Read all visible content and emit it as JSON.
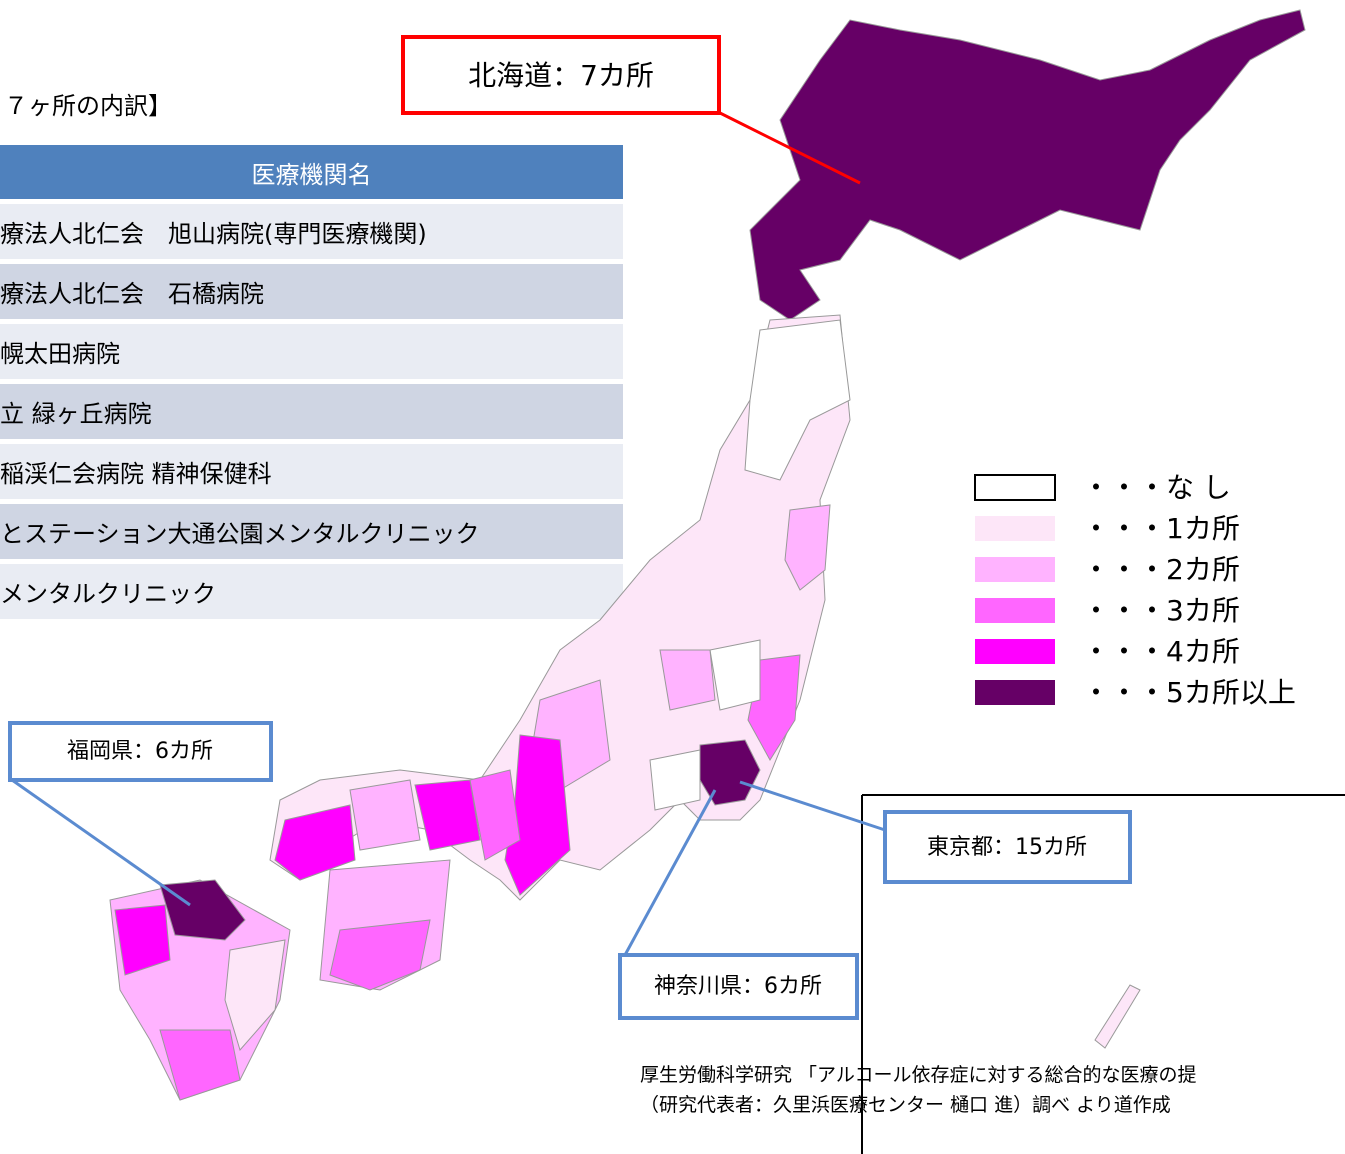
{
  "table_title": "７ヶ所の内訳】",
  "table": {
    "header": "医療機関名",
    "rows": [
      "療法人北仁会　旭山病院(専門医療機関)",
      "療法人北仁会　石橋病院",
      "幌太田病院",
      "立 緑ヶ丘病院",
      "稲渓仁会病院 精神保健科",
      "とステーション大通公園メンタルクリニック",
      "メンタルクリニック"
    ]
  },
  "callouts": [
    {
      "label": "北海道：7カ所"
    },
    {
      "label": "福岡県：6カ所"
    },
    {
      "label": "東京都：15カ所"
    },
    {
      "label": "神奈川県：6カ所"
    }
  ],
  "legend": [
    {
      "label": "・・・な し",
      "color": "#ffffff"
    },
    {
      "label": "・・・1カ所",
      "color": "#fde6f8"
    },
    {
      "label": "・・・2カ所",
      "color": "#ffb3ff"
    },
    {
      "label": "・・・3カ所",
      "color": "#ff66ff"
    },
    {
      "label": "・・・4カ所",
      "color": "#ff00ff"
    },
    {
      "label": "・・・5カ所以上",
      "color": "#660066"
    }
  ],
  "source": [
    "厚生労働科学研究 「アルコール依存症に対する総合的な医療の提",
    "（研究代表者：久里浜医療センター 樋口 進）調べ より道作成"
  ]
}
